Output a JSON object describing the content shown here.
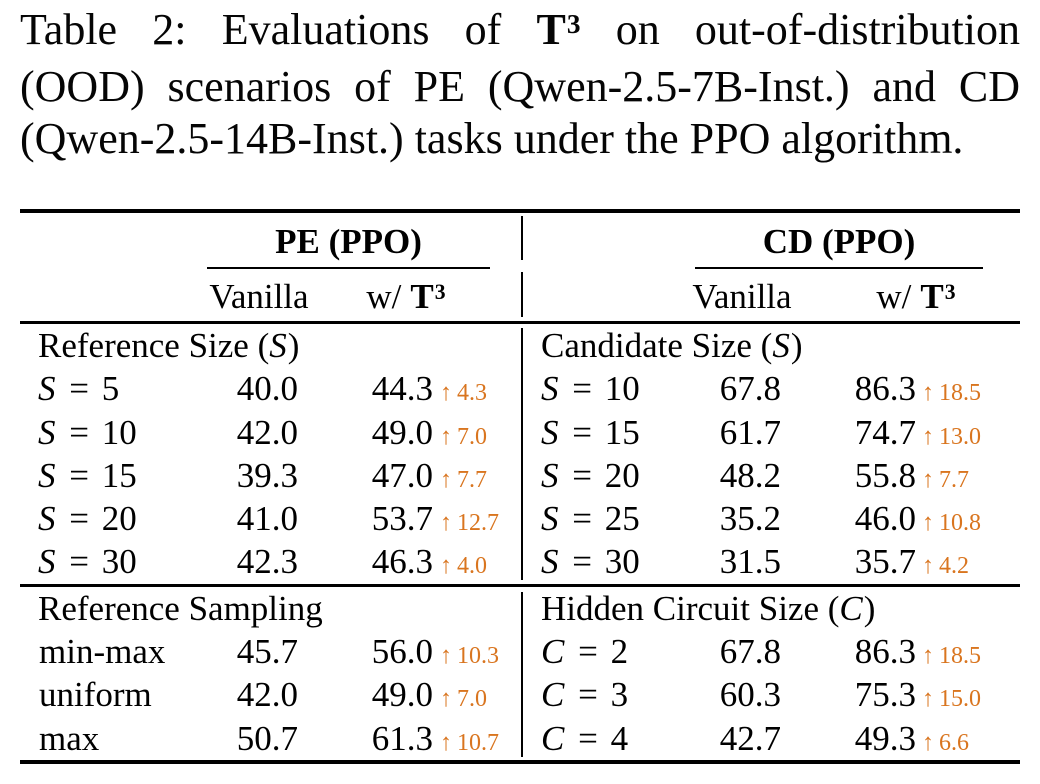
{
  "caption": {
    "l1_pre": "Table 2:  Evaluations of",
    "t3_base": "T",
    "t3_sup": "3",
    "l1_post": "on out-of-distribution",
    "l2": "(OOD) scenarios of PE (Qwen-2.5-7B-Inst.) and CD",
    "l3": "(Qwen-2.5-14B-Inst.) tasks under the PPO algorithm."
  },
  "header": {
    "pe_group": "PE (PPO)",
    "cd_group": "CD (PPO)",
    "vanilla": "Vanilla",
    "wt3_prefix": "w/",
    "t3_base": "T",
    "t3_sup": "3"
  },
  "arrow_up": "↑",
  "colors": {
    "accent_orange": "#D9751F",
    "text": "#000000",
    "background": "#FFFFFF"
  },
  "pe": {
    "block1": {
      "title_pre": "Reference Size (",
      "title_var": "S",
      "title_post": ")",
      "rows": [
        {
          "mv": "S",
          "label": " = 5",
          "vanilla": "40.0",
          "wt3": "44.3",
          "delta": "4.3"
        },
        {
          "mv": "S",
          "label": " = 10",
          "vanilla": "42.0",
          "wt3": "49.0",
          "delta": "7.0"
        },
        {
          "mv": "S",
          "label": " = 15",
          "vanilla": "39.3",
          "wt3": "47.0",
          "delta": "7.7"
        },
        {
          "mv": "S",
          "label": " = 20",
          "vanilla": "41.0",
          "wt3": "53.7",
          "delta": "12.7"
        },
        {
          "mv": "S",
          "label": " = 30",
          "vanilla": "42.3",
          "wt3": "46.3",
          "delta": "4.0"
        }
      ]
    },
    "block2": {
      "title_pre": "Reference Sampling",
      "title_var": "",
      "title_post": "",
      "rows": [
        {
          "mv": "",
          "label": "min-max",
          "vanilla": "45.7",
          "wt3": "56.0",
          "delta": "10.3"
        },
        {
          "mv": "",
          "label": "uniform",
          "vanilla": "42.0",
          "wt3": "49.0",
          "delta": "7.0"
        },
        {
          "mv": "",
          "label": "max",
          "vanilla": "50.7",
          "wt3": "61.3",
          "delta": "10.7"
        }
      ]
    }
  },
  "cd": {
    "block1": {
      "title_pre": "Candidate Size (",
      "title_var": "S",
      "title_post": ")",
      "rows": [
        {
          "mv": "S",
          "label": " = 10",
          "vanilla": "67.8",
          "wt3": "86.3",
          "delta": "18.5"
        },
        {
          "mv": "S",
          "label": " = 15",
          "vanilla": "61.7",
          "wt3": "74.7",
          "delta": "13.0"
        },
        {
          "mv": "S",
          "label": " = 20",
          "vanilla": "48.2",
          "wt3": "55.8",
          "delta": "7.7"
        },
        {
          "mv": "S",
          "label": " = 25",
          "vanilla": "35.2",
          "wt3": "46.0",
          "delta": "10.8"
        },
        {
          "mv": "S",
          "label": " = 30",
          "vanilla": "31.5",
          "wt3": "35.7",
          "delta": "4.2"
        }
      ]
    },
    "block2": {
      "title_pre": "Hidden Circuit Size (",
      "title_var": "C",
      "title_post": ")",
      "rows": [
        {
          "mv": "C",
          "label": " = 2",
          "vanilla": "67.8",
          "wt3": "86.3",
          "delta": "18.5"
        },
        {
          "mv": "C",
          "label": " = 3",
          "vanilla": "60.3",
          "wt3": "75.3",
          "delta": "15.0"
        },
        {
          "mv": "C",
          "label": " = 4",
          "vanilla": "42.7",
          "wt3": "49.3",
          "delta": "6.6"
        }
      ]
    }
  }
}
